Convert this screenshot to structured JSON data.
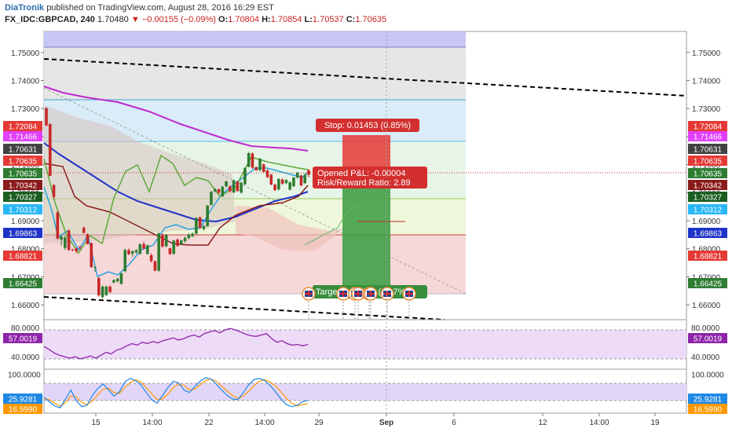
{
  "header": {
    "brand": "DiaTronik",
    "published_text": "published on TradingView.com, August 28, 2016 16:29 EST",
    "symbol": "FX_IDC:GBPCAD, 240",
    "last": "1.70480",
    "arrow": "▼",
    "change": "−0.00155 (−0.09%)",
    "open_label": "O:",
    "open": "1.70804",
    "high_label": "H:",
    "high": "1.70854",
    "low_label": "L:",
    "low": "1.70537",
    "close_label": "C:",
    "close": "1.70635"
  },
  "chart_data": [
    {
      "type": "candlestick",
      "symbol": "GBPCAD",
      "interval": "240",
      "ylim": [
        1.655,
        1.7575
      ],
      "y_ticks": [
        "1.75000",
        "1.74000",
        "1.73000",
        "1.72000",
        "1.71000",
        "1.70000",
        "1.69000",
        "1.68000",
        "1.67000",
        "1.66000"
      ],
      "y_tick_values": [
        1.75,
        1.74,
        1.73,
        1.72,
        1.71,
        1.7,
        1.69,
        1.68,
        1.67,
        1.66
      ],
      "x_ticks": [
        "15",
        "14:00",
        "22",
        "14:00",
        "29",
        "Sep",
        "6",
        "12",
        "14:00",
        "19"
      ],
      "price_badges": [
        {
          "text": "1.72084",
          "value": 1.72084,
          "color": "#e53935"
        },
        {
          "text": "1.71466",
          "value": 1.71466,
          "color": "#e040fb"
        },
        {
          "text": "1.70631",
          "value": 1.70631,
          "color": "#424242"
        },
        {
          "text": "1.70635",
          "value": 1.70635,
          "color": "#e53935"
        },
        {
          "text": "1.70635",
          "value": 1.70635,
          "color": "#2e7d32"
        },
        {
          "text": "1.70342",
          "value": 1.70342,
          "color": "#8b1a1a"
        },
        {
          "text": "1.70327",
          "value": 1.70327,
          "color": "#1b5e20"
        },
        {
          "text": "1.70312",
          "value": 1.70312,
          "color": "#29b6f6"
        },
        {
          "text": "1.69863",
          "value": 1.69863,
          "color": "#1e33c8"
        },
        {
          "text": "1.68821",
          "value": 1.68821,
          "color": "#e53935"
        },
        {
          "text": "1.66425",
          "value": 1.66425,
          "color": "#2e7d32"
        }
      ],
      "fib_levels": [
        1.7544,
        1.7345,
        1.71466,
        1.7032,
        1.6844,
        1.66
      ],
      "candles": [
        [
          1.7301,
          1.7305,
          1.7236,
          1.724
        ],
        [
          1.7245,
          1.7248,
          1.7059,
          1.706
        ],
        [
          1.7027,
          1.703,
          1.6977,
          1.6985
        ],
        [
          1.693,
          1.6935,
          1.6834,
          1.6836
        ],
        [
          1.6833,
          1.685,
          1.6811,
          1.6844
        ],
        [
          1.6803,
          1.6846,
          1.6795,
          1.684
        ],
        [
          1.6865,
          1.687,
          1.6792,
          1.6796
        ],
        [
          1.6797,
          1.68,
          1.6791,
          1.6795
        ],
        [
          1.6801,
          1.6804,
          1.6784,
          1.6791
        ],
        [
          1.6807,
          1.681,
          1.6796,
          1.6804
        ],
        [
          1.6875,
          1.688,
          1.6854,
          1.6857
        ],
        [
          1.6852,
          1.6855,
          1.6815,
          1.6817
        ],
        [
          1.682,
          1.6823,
          1.6732,
          1.6735
        ],
        [
          1.6735,
          1.674,
          1.6718,
          1.6735
        ],
        [
          1.6696,
          1.67,
          1.6629,
          1.6634
        ],
        [
          1.6628,
          1.6669,
          1.6624,
          1.6665
        ],
        [
          1.6635,
          1.6669,
          1.6631,
          1.6665
        ],
        [
          1.6665,
          1.667,
          1.6642,
          1.6646
        ],
        [
          1.668,
          1.6692,
          1.6676,
          1.6688
        ],
        [
          1.6684,
          1.6697,
          1.668,
          1.6693
        ],
        [
          1.6675,
          1.6715,
          1.6672,
          1.6712
        ],
        [
          1.672,
          1.68,
          1.6716,
          1.6796
        ],
        [
          1.6795,
          1.6802,
          1.6777,
          1.6781
        ],
        [
          1.6783,
          1.6795,
          1.6772,
          1.6791
        ],
        [
          1.6787,
          1.6799,
          1.6782,
          1.6795
        ],
        [
          1.6782,
          1.682,
          1.6778,
          1.6816
        ],
        [
          1.6817,
          1.6825,
          1.6797,
          1.6801
        ],
        [
          1.6782,
          1.6816,
          1.6779,
          1.6812
        ],
        [
          1.6777,
          1.6784,
          1.6751,
          1.6756
        ],
        [
          1.6756,
          1.6758,
          1.672,
          1.6722
        ],
        [
          1.6722,
          1.6858,
          1.6718,
          1.6855
        ],
        [
          1.6849,
          1.6855,
          1.6804,
          1.6808
        ],
        [
          1.6809,
          1.6853,
          1.6805,
          1.6849
        ],
        [
          1.6802,
          1.6804,
          1.6778,
          1.6781
        ],
        [
          1.6782,
          1.6833,
          1.6779,
          1.6829
        ],
        [
          1.6833,
          1.6837,
          1.6807,
          1.681
        ],
        [
          1.6816,
          1.6833,
          1.6812,
          1.6829
        ],
        [
          1.6827,
          1.6844,
          1.6822,
          1.6839
        ],
        [
          1.6838,
          1.6855,
          1.6833,
          1.685
        ],
        [
          1.6845,
          1.6858,
          1.6841,
          1.6854
        ],
        [
          1.6854,
          1.6913,
          1.6851,
          1.691
        ],
        [
          1.6912,
          1.6915,
          1.6871,
          1.6875
        ],
        [
          1.6871,
          1.6885,
          1.6864,
          1.6881
        ],
        [
          1.6881,
          1.6957,
          1.6878,
          1.6954
        ],
        [
          1.6957,
          1.7006,
          1.6953,
          1.7003
        ],
        [
          1.7005,
          1.7016,
          1.7001,
          1.7013
        ],
        [
          1.7012,
          1.7015,
          1.6996,
          1.7
        ],
        [
          1.6987,
          1.7025,
          1.6984,
          1.7021
        ],
        [
          1.7023,
          1.7043,
          1.7019,
          1.704
        ],
        [
          1.7022,
          1.7026,
          1.7001,
          1.7005
        ],
        [
          1.7001,
          1.7047,
          1.6998,
          1.7044
        ],
        [
          1.7039,
          1.7043,
          1.7003,
          1.7006
        ],
        [
          1.7,
          1.7039,
          1.6997,
          1.7036
        ],
        [
          1.703,
          1.7091,
          1.7027,
          1.7088
        ],
        [
          1.7093,
          1.7145,
          1.709,
          1.7141
        ],
        [
          1.714,
          1.7143,
          1.7085,
          1.7089
        ],
        [
          1.7091,
          1.7094,
          1.7077,
          1.708
        ],
        [
          1.708,
          1.7124,
          1.7077,
          1.7121
        ],
        [
          1.7101,
          1.7104,
          1.7071,
          1.7074
        ],
        [
          1.708,
          1.7084,
          1.7052,
          1.7055
        ],
        [
          1.7064,
          1.7068,
          1.7026,
          1.7029
        ],
        [
          1.7029,
          1.7033,
          1.7006,
          1.7009
        ],
        [
          1.7012,
          1.7052,
          1.7007,
          1.7049
        ],
        [
          1.7047,
          1.7051,
          1.7028,
          1.7032
        ],
        [
          1.7034,
          1.7049,
          1.703,
          1.7045
        ],
        [
          1.7011,
          1.704,
          1.7008,
          1.7037
        ],
        [
          1.7023,
          1.7057,
          1.702,
          1.7054
        ],
        [
          1.7054,
          1.7074,
          1.705,
          1.707
        ],
        [
          1.7061,
          1.7065,
          1.7023,
          1.7026
        ],
        [
          1.7034,
          1.7069,
          1.7031,
          1.7064
        ],
        [
          1.708,
          1.7085,
          1.7054,
          1.7064
        ]
      ],
      "position": {
        "stop_label": "Stop: 0.01453 (0.85%)",
        "pnl_label": "Opened P&L: -0.00004",
        "rr_label": "Risk/Reward Ratio: 2.89",
        "target_label": "Target: 0.04210 (2.47%)",
        "entry": 1.70635,
        "stop": 1.72084,
        "target": 1.66425
      },
      "event_markers": 8,
      "event_marker_labels": [
        "",
        "",
        "",
        "",
        "",
        "",
        "",
        ""
      ]
    },
    {
      "type": "line",
      "name": "RSI",
      "ylim": [
        25,
        90
      ],
      "y_ticks": [
        "80.0000",
        "40.0000"
      ],
      "y_tick_values": [
        80,
        40
      ],
      "bands": [
        70,
        30
      ],
      "last_badge": {
        "text": "57.0019",
        "color": "#8e24aa"
      },
      "values": [
        54,
        50,
        45,
        42,
        40,
        38,
        40,
        37,
        39,
        41,
        38,
        42,
        46,
        44,
        49,
        51,
        55,
        58,
        56,
        60,
        58,
        61,
        59,
        62,
        64,
        66,
        63,
        65,
        68,
        70,
        67,
        72,
        74,
        76,
        73,
        77,
        79,
        77,
        74,
        71,
        69,
        68,
        70,
        72,
        65,
        60,
        62,
        58,
        56,
        57,
        55,
        57
      ]
    },
    {
      "type": "line",
      "name": "Stoch",
      "ylim": [
        -8,
        112
      ],
      "y_ticks": [
        "100.0000"
      ],
      "y_tick_values": [
        100
      ],
      "bands": [
        80,
        20
      ],
      "badges": [
        {
          "text": "25.9281",
          "color": "#1e88e5"
        },
        {
          "text": "16.5990",
          "color": "#ff9800"
        }
      ],
      "k_values": [
        35,
        22,
        10,
        5,
        30,
        55,
        25,
        8,
        12,
        40,
        60,
        72,
        55,
        38,
        50,
        78,
        88,
        82,
        70,
        48,
        28,
        18,
        40,
        62,
        80,
        75,
        55,
        48,
        65,
        80,
        90,
        86,
        72,
        55,
        40,
        30,
        28,
        48,
        70,
        85,
        88,
        82,
        68,
        50,
        30,
        14,
        8,
        12,
        22,
        26
      ],
      "d_values": [
        30,
        28,
        18,
        10,
        20,
        38,
        36,
        20,
        14,
        24,
        42,
        58,
        60,
        48,
        46,
        62,
        76,
        84,
        78,
        62,
        44,
        28,
        30,
        44,
        62,
        72,
        68,
        56,
        58,
        70,
        82,
        86,
        80,
        66,
        52,
        40,
        32,
        38,
        52,
        68,
        80,
        84,
        78,
        66,
        50,
        32,
        18,
        10,
        14,
        17
      ]
    }
  ]
}
